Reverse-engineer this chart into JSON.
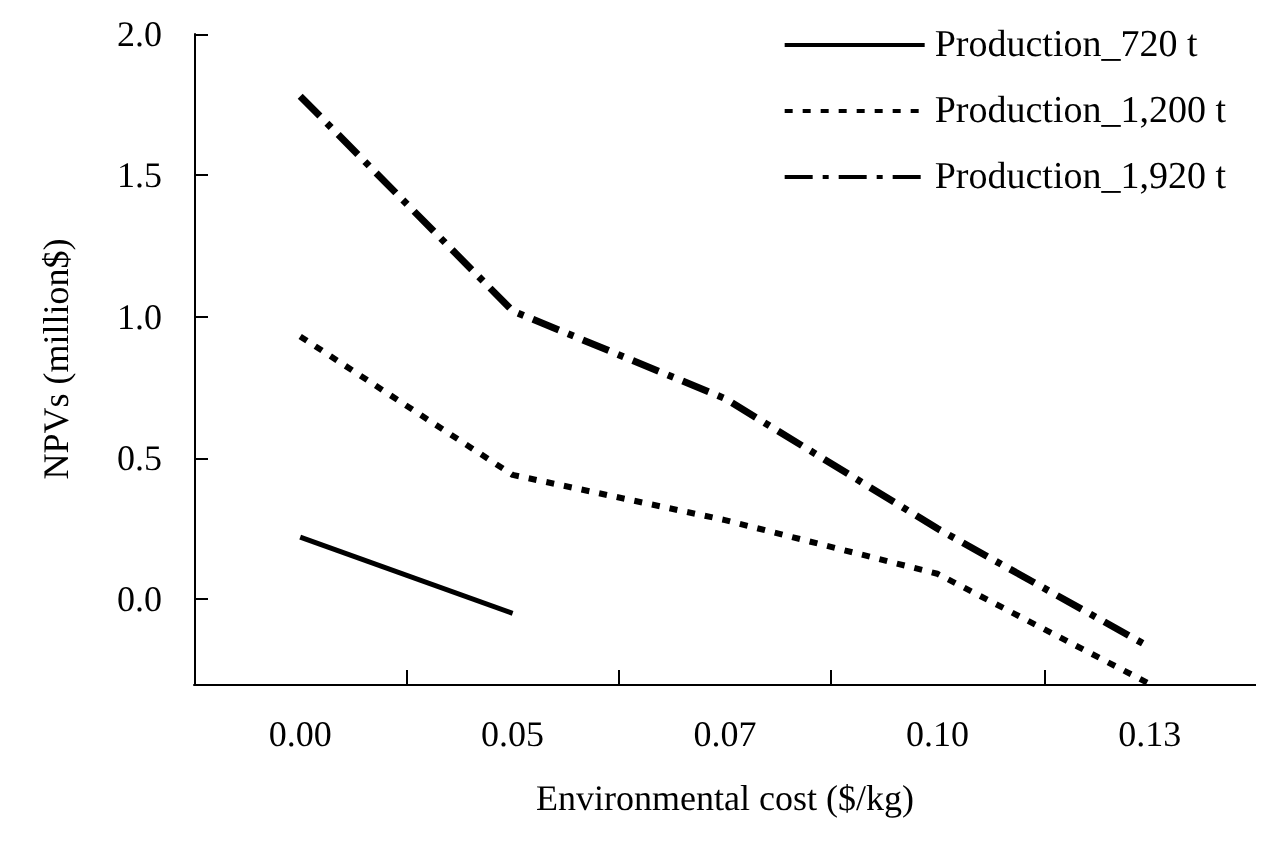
{
  "chart_data": {
    "type": "line",
    "xlabel": "Environmental cost ($/kg)",
    "ylabel": "NPVs (million$)",
    "categories": [
      "0.00",
      "0.05",
      "0.07",
      "0.10",
      "0.13"
    ],
    "series": [
      {
        "name": "Production_720 t",
        "color": "#000000",
        "line_style": "solid",
        "values": [
          0.22,
          -0.05,
          null,
          null,
          null
        ]
      },
      {
        "name": "Production_1,200 t",
        "color": "#000000",
        "line_style": "dotted",
        "values": [
          0.93,
          0.44,
          0.28,
          0.09,
          -0.3
        ]
      },
      {
        "name": "Production_1,920 t",
        "color": "#000000",
        "line_style": "dashdot",
        "values": [
          1.78,
          1.02,
          0.71,
          0.25,
          -0.17
        ]
      }
    ],
    "ylim": [
      -0.3,
      2
    ],
    "yticks": [
      {
        "value": 0,
        "label": "0.0"
      },
      0.5,
      {
        "value": 1,
        "label": "1.0"
      },
      1.5,
      {
        "value": 2,
        "label": "2.0"
      }
    ],
    "grid": false,
    "legend": "top right",
    "marker": "none"
  }
}
